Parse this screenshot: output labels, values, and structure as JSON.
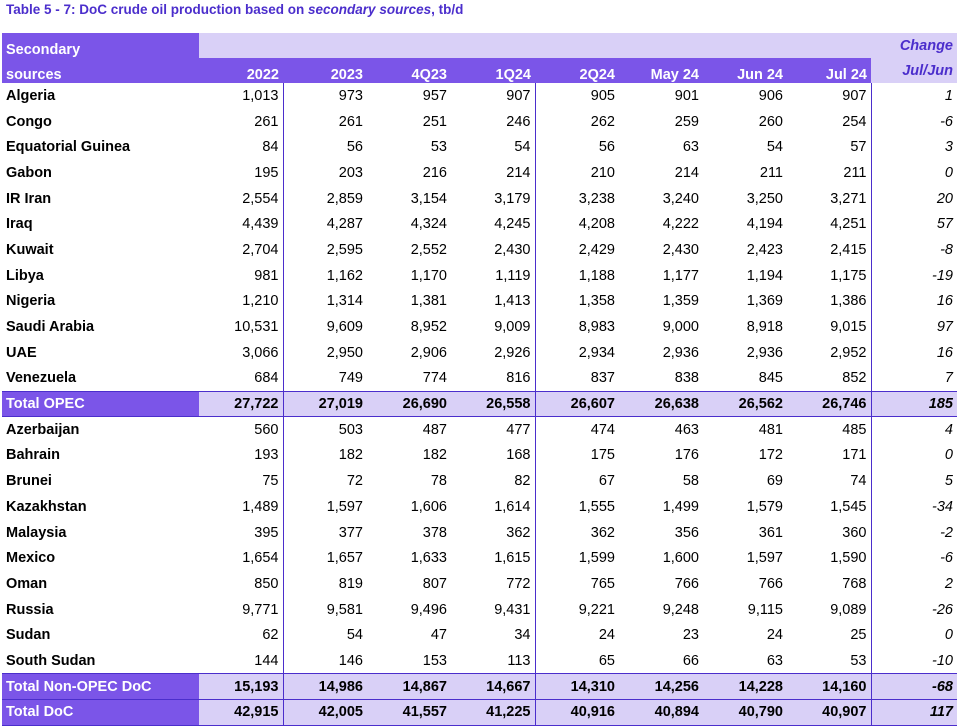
{
  "title": {
    "prefix": "Table 5 - 7: DoC crude oil production based on ",
    "italic": "secondary sources",
    "suffix": ", tb/d"
  },
  "header": {
    "row1_label": "Secondary",
    "row2_label": "sources",
    "change_top": "Change",
    "columns": [
      "2022",
      "2023",
      "4Q23",
      "1Q24",
      "2Q24",
      "May 24",
      "Jun 24",
      "Jul 24",
      "Jul/Jun"
    ]
  },
  "rows": [
    {
      "name": "Algeria",
      "values": [
        "1,013",
        "973",
        "957",
        "907",
        "905",
        "901",
        "906",
        "907",
        "1"
      ]
    },
    {
      "name": "Congo",
      "values": [
        "261",
        "261",
        "251",
        "246",
        "262",
        "259",
        "260",
        "254",
        "-6"
      ]
    },
    {
      "name": "Equatorial Guinea",
      "values": [
        "84",
        "56",
        "53",
        "54",
        "56",
        "63",
        "54",
        "57",
        "3"
      ]
    },
    {
      "name": "Gabon",
      "values": [
        "195",
        "203",
        "216",
        "214",
        "210",
        "214",
        "211",
        "211",
        "0"
      ]
    },
    {
      "name": "IR Iran",
      "values": [
        "2,554",
        "2,859",
        "3,154",
        "3,179",
        "3,238",
        "3,240",
        "3,250",
        "3,271",
        "20"
      ]
    },
    {
      "name": "Iraq",
      "values": [
        "4,439",
        "4,287",
        "4,324",
        "4,245",
        "4,208",
        "4,222",
        "4,194",
        "4,251",
        "57"
      ]
    },
    {
      "name": "Kuwait",
      "values": [
        "2,704",
        "2,595",
        "2,552",
        "2,430",
        "2,429",
        "2,430",
        "2,423",
        "2,415",
        "-8"
      ]
    },
    {
      "name": "Libya",
      "values": [
        "981",
        "1,162",
        "1,170",
        "1,119",
        "1,188",
        "1,177",
        "1,194",
        "1,175",
        "-19"
      ]
    },
    {
      "name": "Nigeria",
      "values": [
        "1,210",
        "1,314",
        "1,381",
        "1,413",
        "1,358",
        "1,359",
        "1,369",
        "1,386",
        "16"
      ]
    },
    {
      "name": "Saudi Arabia",
      "values": [
        "10,531",
        "9,609",
        "8,952",
        "9,009",
        "8,983",
        "9,000",
        "8,918",
        "9,015",
        "97"
      ]
    },
    {
      "name": "UAE",
      "values": [
        "3,066",
        "2,950",
        "2,906",
        "2,926",
        "2,934",
        "2,936",
        "2,936",
        "2,952",
        "16"
      ]
    },
    {
      "name": "Venezuela",
      "values": [
        "684",
        "749",
        "774",
        "816",
        "837",
        "838",
        "845",
        "852",
        "7"
      ]
    },
    {
      "name": "Total  OPEC",
      "total": true,
      "values": [
        "27,722",
        "27,019",
        "26,690",
        "26,558",
        "26,607",
        "26,638",
        "26,562",
        "26,746",
        "185"
      ]
    },
    {
      "name": "Azerbaijan",
      "values": [
        "560",
        "503",
        "487",
        "477",
        "474",
        "463",
        "481",
        "485",
        "4"
      ]
    },
    {
      "name": "Bahrain",
      "values": [
        "193",
        "182",
        "182",
        "168",
        "175",
        "176",
        "172",
        "171",
        "0"
      ]
    },
    {
      "name": "Brunei",
      "values": [
        "75",
        "72",
        "78",
        "82",
        "67",
        "58",
        "69",
        "74",
        "5"
      ]
    },
    {
      "name": "Kazakhstan",
      "values": [
        "1,489",
        "1,597",
        "1,606",
        "1,614",
        "1,555",
        "1,499",
        "1,579",
        "1,545",
        "-34"
      ]
    },
    {
      "name": "Malaysia",
      "values": [
        "395",
        "377",
        "378",
        "362",
        "362",
        "356",
        "361",
        "360",
        "-2"
      ]
    },
    {
      "name": "Mexico",
      "values": [
        "1,654",
        "1,657",
        "1,633",
        "1,615",
        "1,599",
        "1,600",
        "1,597",
        "1,590",
        "-6"
      ]
    },
    {
      "name": "Oman",
      "values": [
        "850",
        "819",
        "807",
        "772",
        "765",
        "766",
        "766",
        "768",
        "2"
      ]
    },
    {
      "name": "Russia",
      "values": [
        "9,771",
        "9,581",
        "9,496",
        "9,431",
        "9,221",
        "9,248",
        "9,115",
        "9,089",
        "-26"
      ]
    },
    {
      "name": "Sudan",
      "values": [
        "62",
        "54",
        "47",
        "34",
        "24",
        "23",
        "24",
        "25",
        "0"
      ]
    },
    {
      "name": "South Sudan",
      "values": [
        "144",
        "146",
        "153",
        "113",
        "65",
        "66",
        "63",
        "53",
        "-10"
      ]
    },
    {
      "name": "Total Non-OPEC DoC",
      "total": true,
      "values": [
        "15,193",
        "14,986",
        "14,867",
        "14,667",
        "14,310",
        "14,256",
        "14,228",
        "14,160",
        "-68"
      ]
    },
    {
      "name": "Total DoC",
      "total": true,
      "values": [
        "42,915",
        "42,005",
        "41,557",
        "41,225",
        "40,916",
        "40,894",
        "40,790",
        "40,907",
        "117"
      ]
    }
  ],
  "colors": {
    "header_bg": "#7b55e8",
    "accent": "#4b2ecc",
    "light_bg": "#d9d0f7"
  }
}
